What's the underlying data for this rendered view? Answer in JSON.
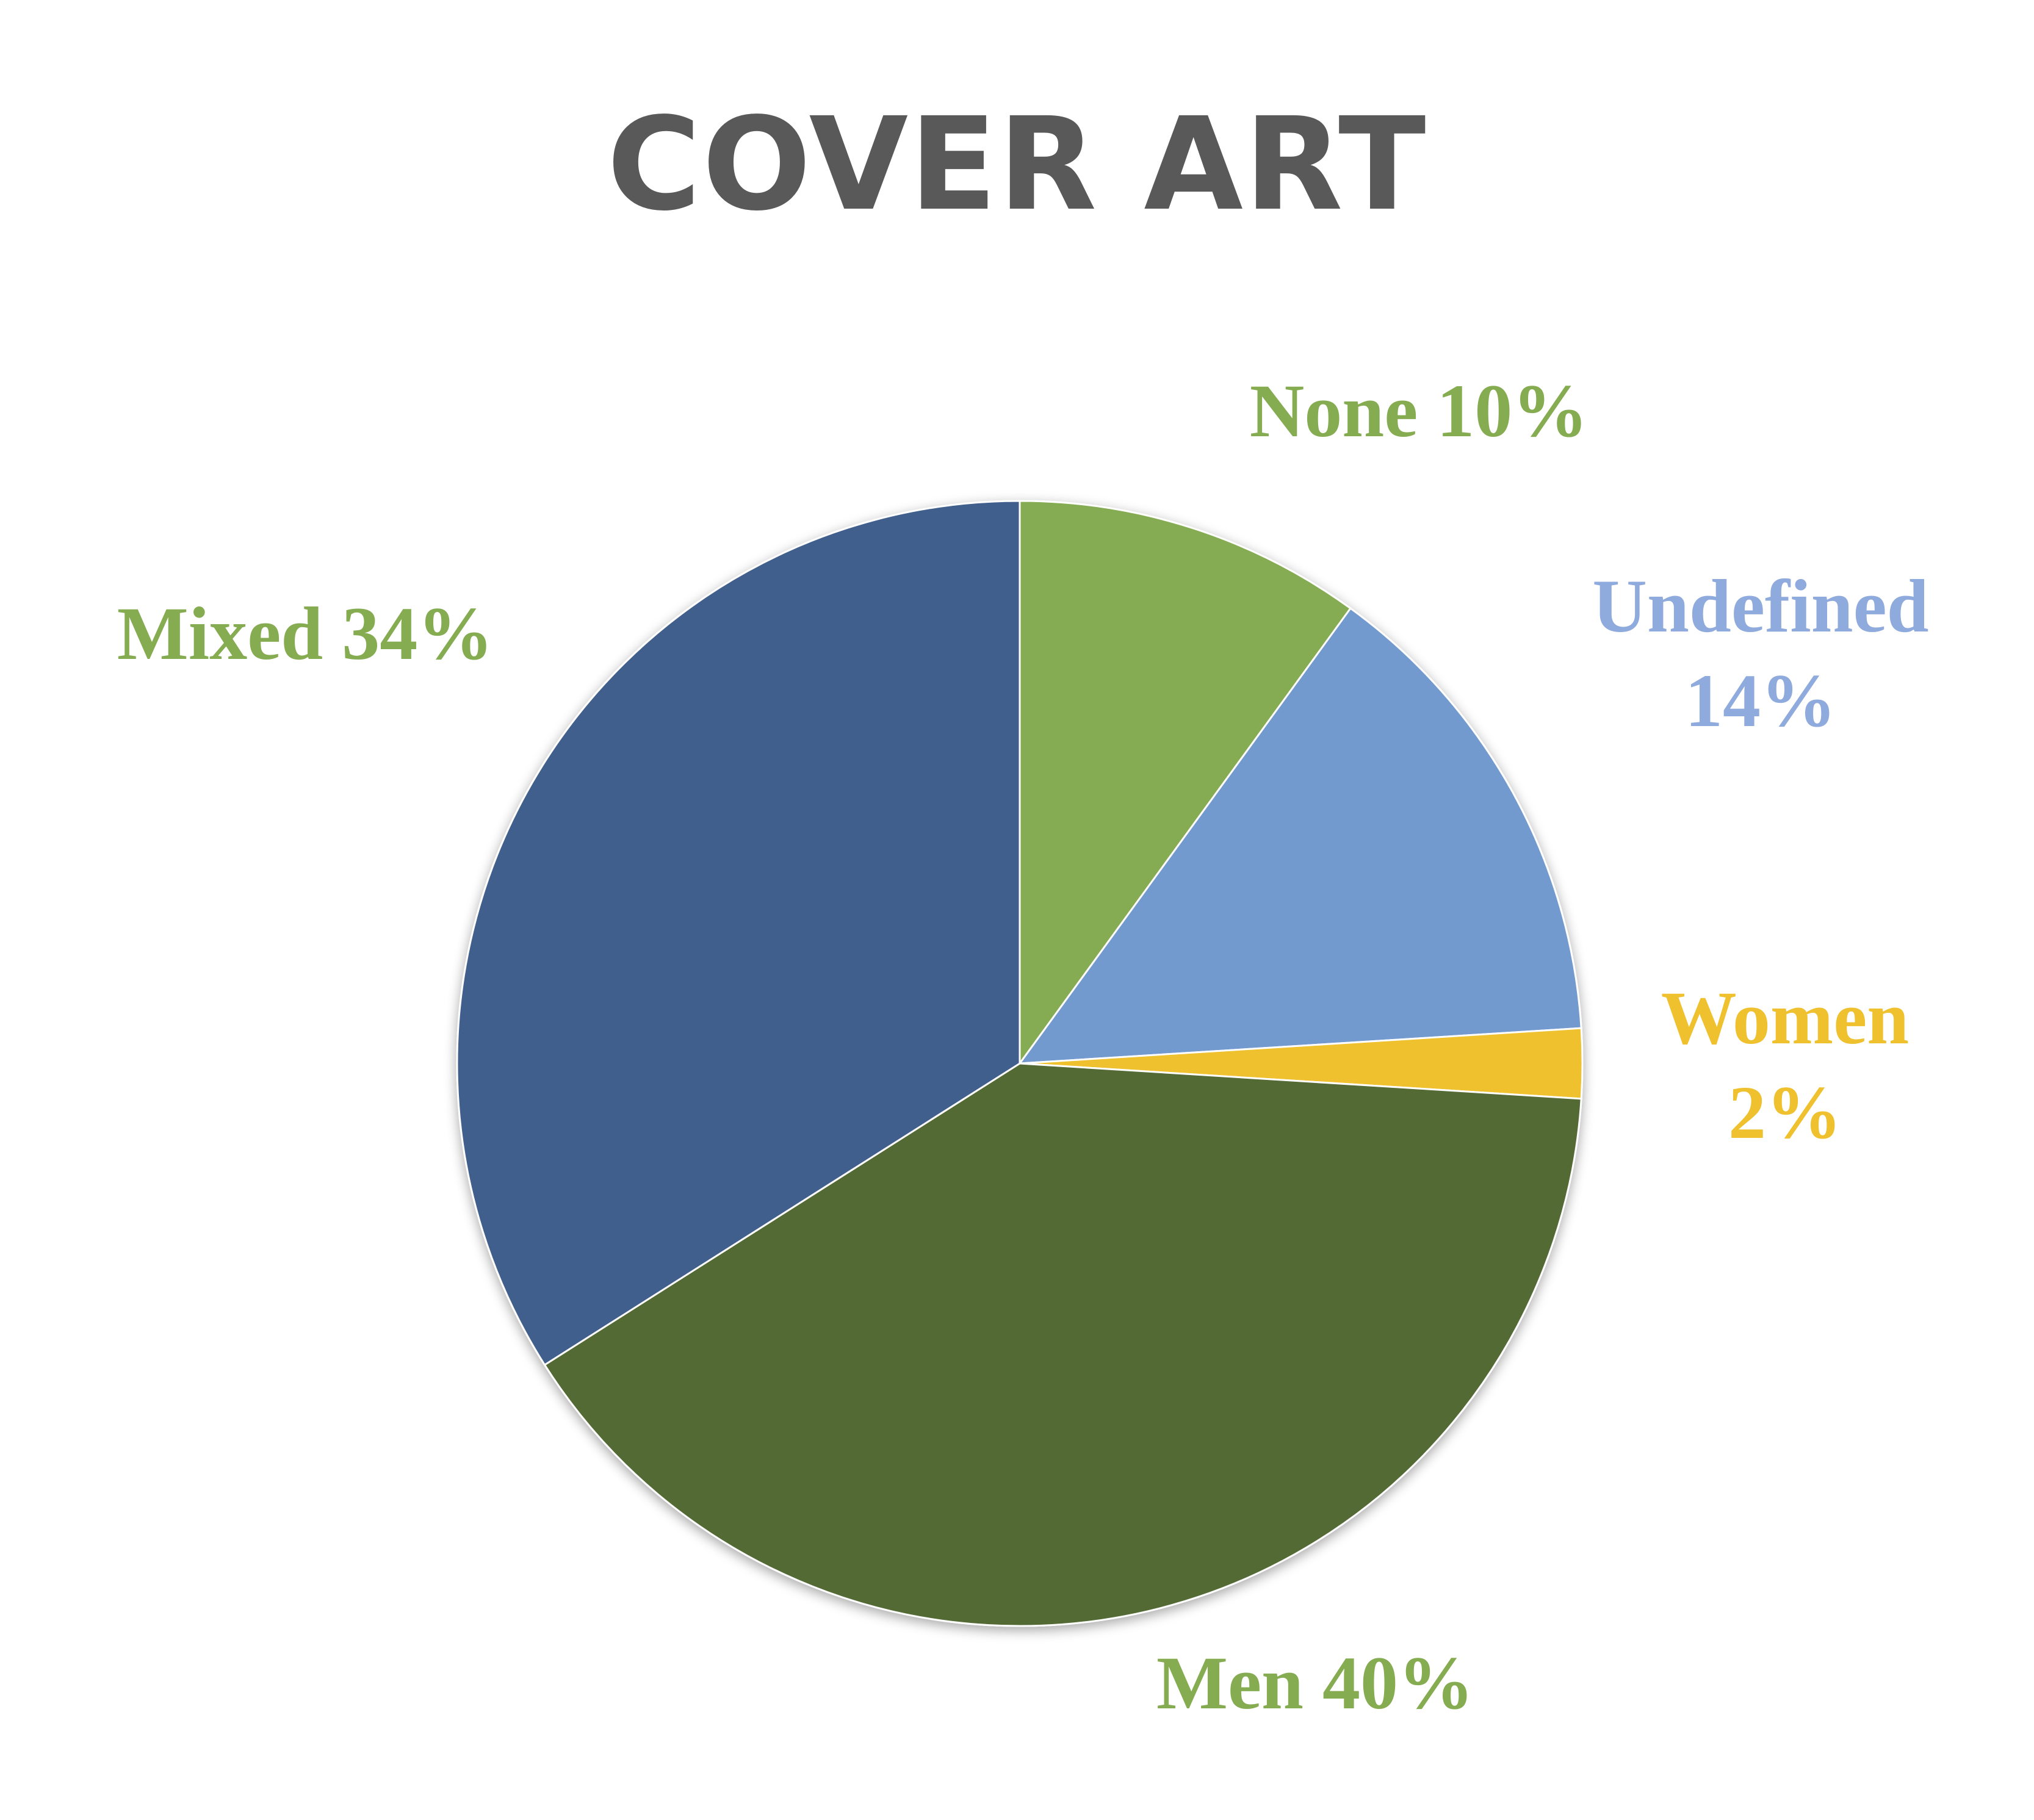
{
  "chart_data": {
    "type": "pie",
    "title": "COVER ART",
    "slices": [
      {
        "name": "None",
        "value": 10,
        "label": "None 10%",
        "color": "#86AC52"
      },
      {
        "name": "Undefined",
        "value": 14,
        "label_lines": [
          "Undefined",
          "14%"
        ],
        "color": "#729ACF",
        "label_color": "#8FAADC"
      },
      {
        "name": "Women",
        "value": 2,
        "label_lines": [
          "Women",
          "2%"
        ],
        "color": "#EFC12E"
      },
      {
        "name": "Men",
        "value": 40,
        "label": "Men 40%",
        "color": "#526A34",
        "label_color": "#86AC52"
      },
      {
        "name": "Mixed",
        "value": 34,
        "label": "Mixed 34%",
        "color": "#3F5E8C",
        "label_color": "#86AC52"
      }
    ],
    "start_angle": "12 o'clock",
    "direction": "clockwise",
    "legend": "none"
  }
}
